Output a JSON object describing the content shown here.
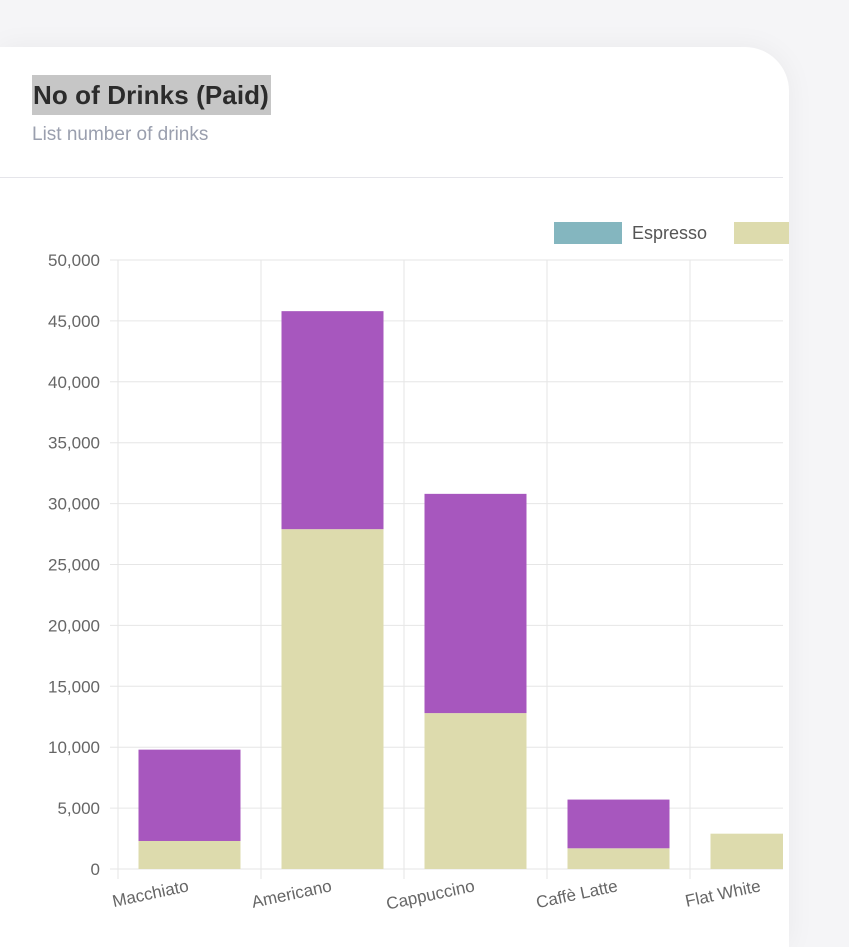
{
  "card": {
    "title": "No of Drinks (Paid)",
    "subtitle": "List number of drinks"
  },
  "chart_data": {
    "type": "bar",
    "stacked": true,
    "categories": [
      "Macchiato",
      "Americano",
      "Cappuccino",
      "Caffè Latte",
      "Flat White"
    ],
    "series": [
      {
        "name": "Espresso",
        "color": "#84b6bf",
        "values": [
          0,
          0,
          0,
          0,
          0
        ]
      },
      {
        "name": "",
        "color": "#dddbad",
        "values": [
          2300,
          27900,
          12800,
          1700,
          2900
        ]
      },
      {
        "name": "",
        "color": "#a757be",
        "values": [
          7500,
          17900,
          18000,
          4000,
          0
        ]
      }
    ],
    "y_ticks": [
      "0",
      "5,000",
      "10,000",
      "15,000",
      "20,000",
      "25,000",
      "30,000",
      "35,000",
      "40,000",
      "45,000",
      "50,000"
    ],
    "ylim": [
      0,
      50000
    ],
    "legend": "top-right",
    "grid": true
  }
}
